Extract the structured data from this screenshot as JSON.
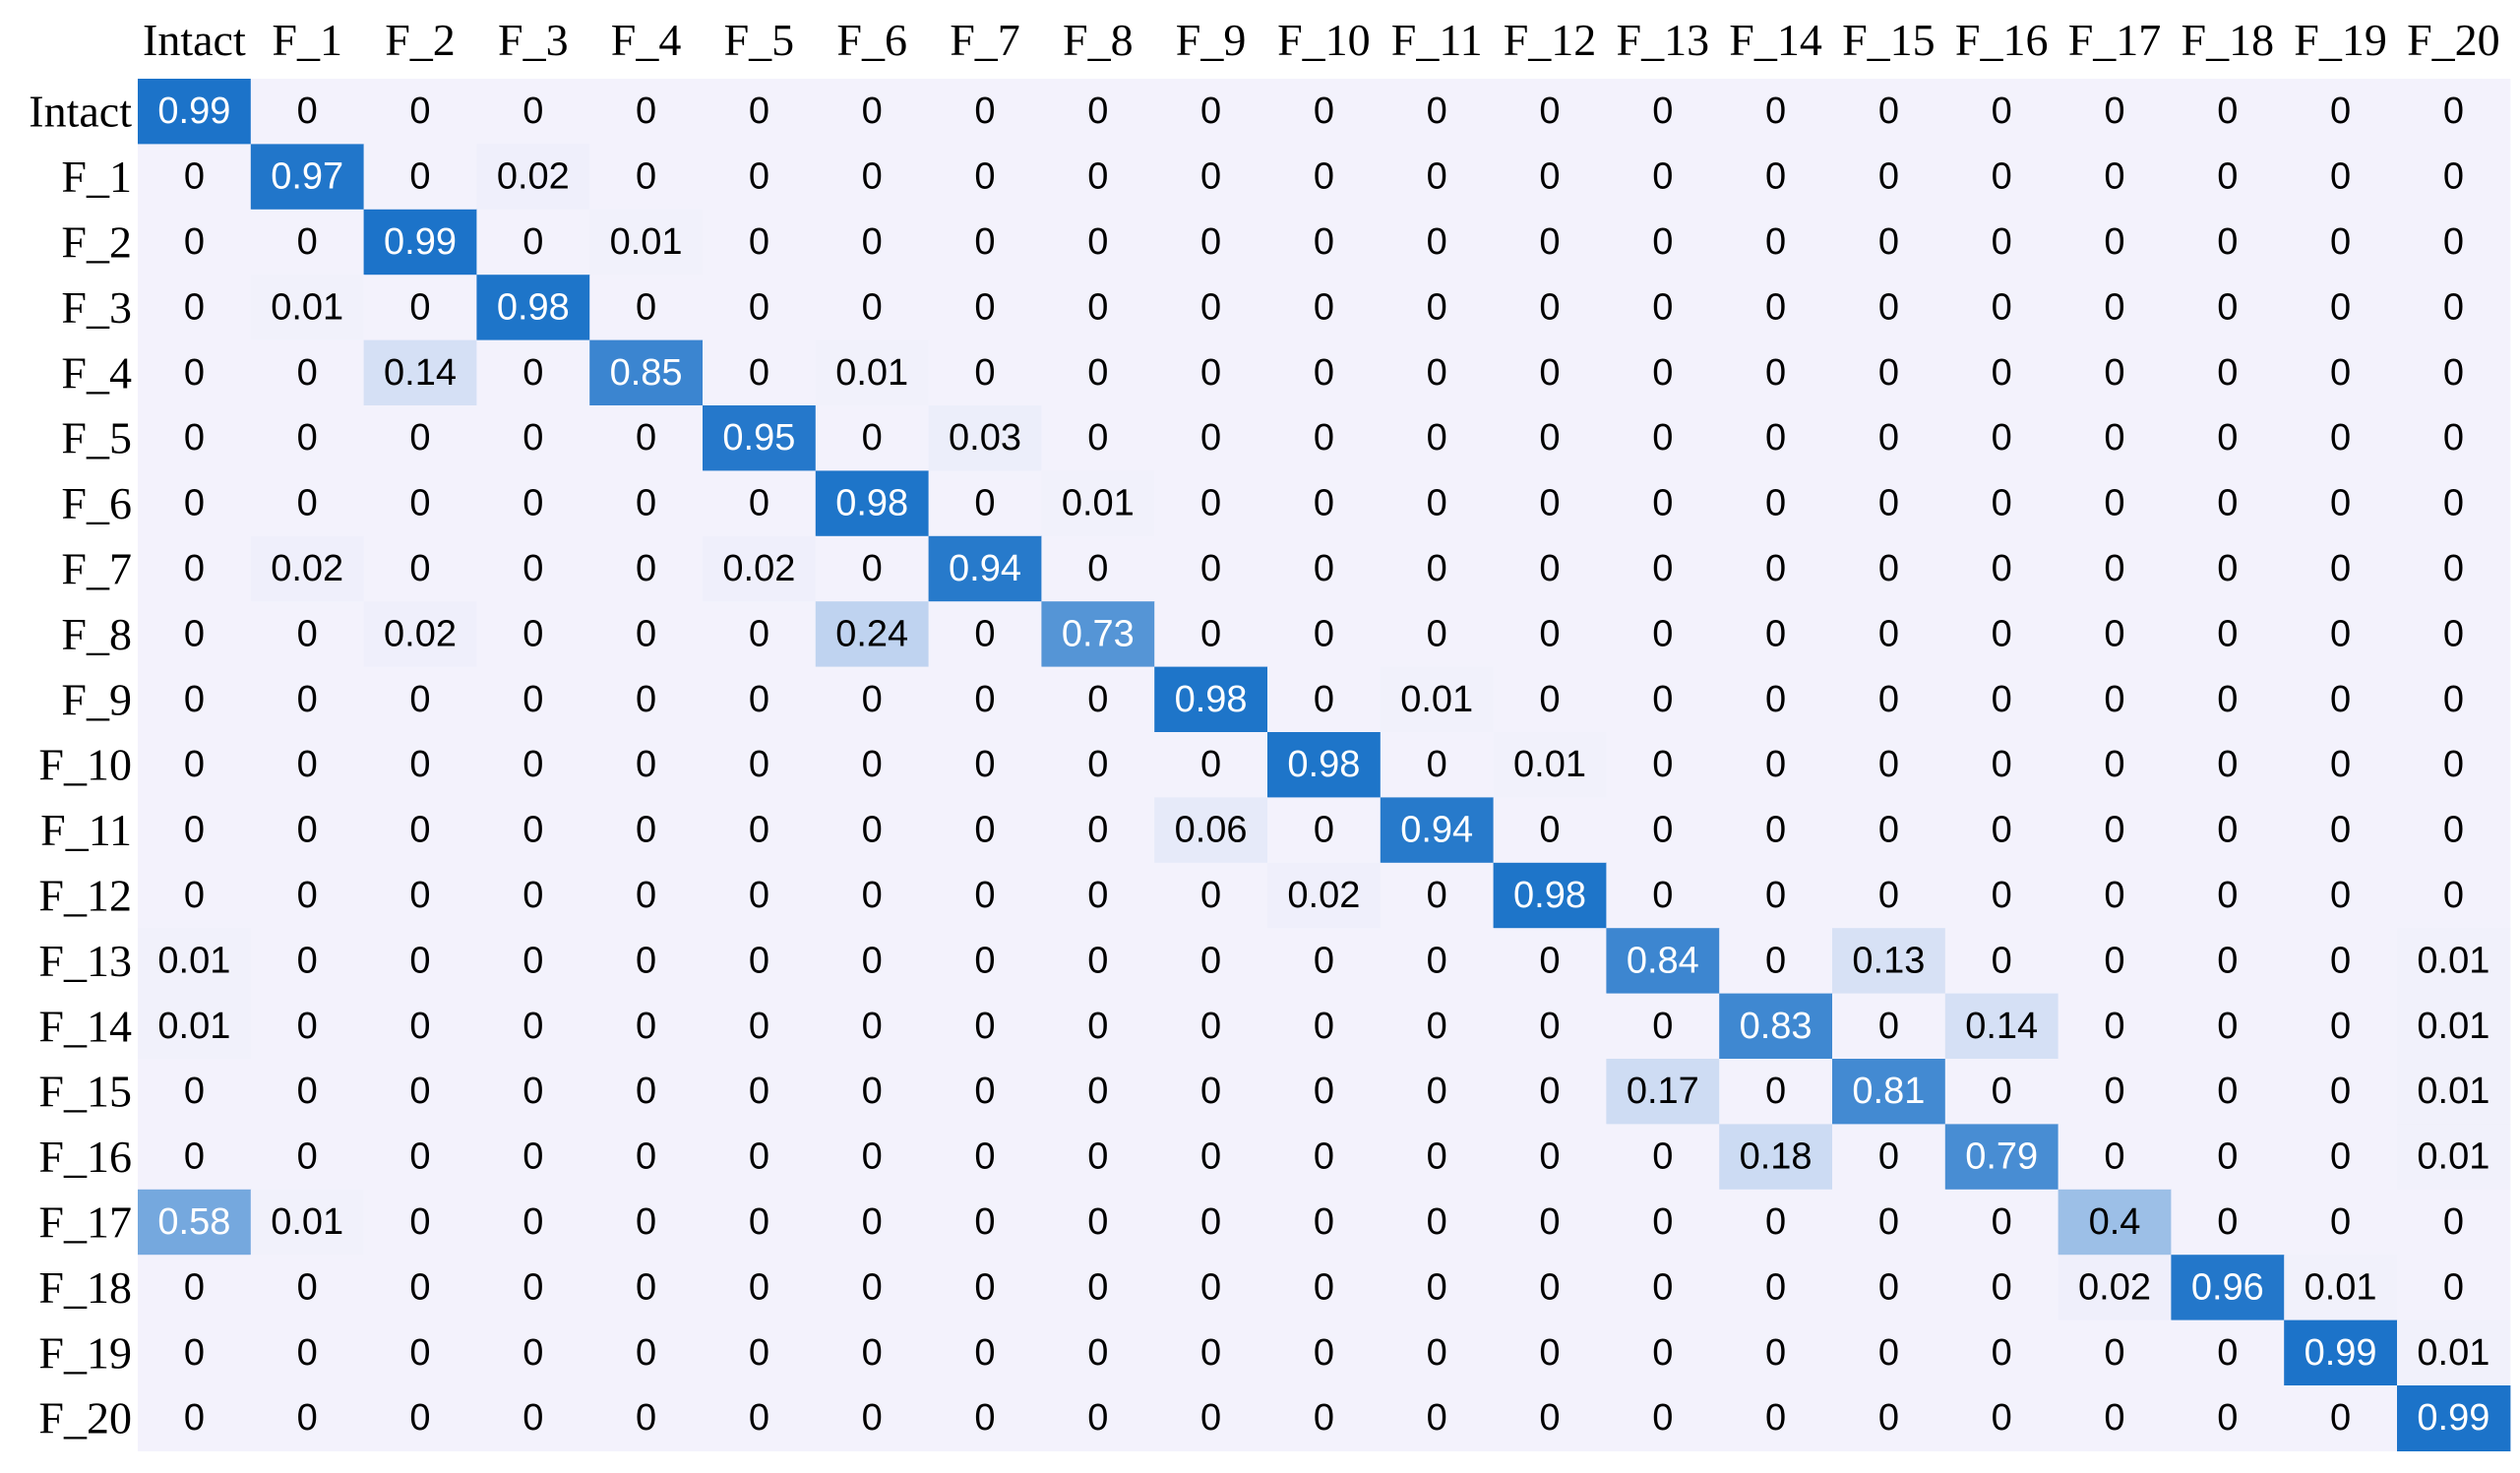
{
  "chart_data": {
    "type": "heatmap",
    "title": "",
    "xlabel": "",
    "ylabel": "",
    "categories": [
      "Intact",
      "F_1",
      "F_2",
      "F_3",
      "F_4",
      "F_5",
      "F_6",
      "F_7",
      "F_8",
      "F_9",
      "F_10",
      "F_11",
      "F_12",
      "F_13",
      "F_14",
      "F_15",
      "F_16",
      "F_17",
      "F_18",
      "F_19",
      "F_20"
    ],
    "row_labels": [
      "Intact",
      "F_1",
      "F_2",
      "F_3",
      "F_4",
      "F_5",
      "F_6",
      "F_7",
      "F_8",
      "F_9",
      "F_10",
      "F_11",
      "F_12",
      "F_13",
      "F_14",
      "F_15",
      "F_16",
      "F_17",
      "F_18",
      "F_19",
      "F_20"
    ],
    "values": [
      [
        0.99,
        0,
        0,
        0,
        0,
        0,
        0,
        0,
        0,
        0,
        0,
        0,
        0,
        0,
        0,
        0,
        0,
        0,
        0,
        0,
        0
      ],
      [
        0,
        0.97,
        0,
        0.02,
        0,
        0,
        0,
        0,
        0,
        0,
        0,
        0,
        0,
        0,
        0,
        0,
        0,
        0,
        0,
        0,
        0
      ],
      [
        0,
        0,
        0.99,
        0,
        0.01,
        0,
        0,
        0,
        0,
        0,
        0,
        0,
        0,
        0,
        0,
        0,
        0,
        0,
        0,
        0,
        0
      ],
      [
        0,
        0.01,
        0,
        0.98,
        0,
        0,
        0,
        0,
        0,
        0,
        0,
        0,
        0,
        0,
        0,
        0,
        0,
        0,
        0,
        0,
        0
      ],
      [
        0,
        0,
        0.14,
        0,
        0.85,
        0,
        0.01,
        0,
        0,
        0,
        0,
        0,
        0,
        0,
        0,
        0,
        0,
        0,
        0,
        0,
        0
      ],
      [
        0,
        0,
        0,
        0,
        0,
        0.95,
        0,
        0.03,
        0,
        0,
        0,
        0,
        0,
        0,
        0,
        0,
        0,
        0,
        0,
        0,
        0
      ],
      [
        0,
        0,
        0,
        0,
        0,
        0,
        0.98,
        0,
        0.01,
        0,
        0,
        0,
        0,
        0,
        0,
        0,
        0,
        0,
        0,
        0,
        0
      ],
      [
        0,
        0.02,
        0,
        0,
        0,
        0.02,
        0,
        0.94,
        0,
        0,
        0,
        0,
        0,
        0,
        0,
        0,
        0,
        0,
        0,
        0,
        0
      ],
      [
        0,
        0,
        0.02,
        0,
        0,
        0,
        0.24,
        0,
        0.73,
        0,
        0,
        0,
        0,
        0,
        0,
        0,
        0,
        0,
        0,
        0,
        0
      ],
      [
        0,
        0,
        0,
        0,
        0,
        0,
        0,
        0,
        0,
        0.98,
        0,
        0.01,
        0,
        0,
        0,
        0,
        0,
        0,
        0,
        0,
        0
      ],
      [
        0,
        0,
        0,
        0,
        0,
        0,
        0,
        0,
        0,
        0,
        0.98,
        0,
        0.01,
        0,
        0,
        0,
        0,
        0,
        0,
        0,
        0
      ],
      [
        0,
        0,
        0,
        0,
        0,
        0,
        0,
        0,
        0,
        0.06,
        0,
        0.94,
        0,
        0,
        0,
        0,
        0,
        0,
        0,
        0,
        0
      ],
      [
        0,
        0,
        0,
        0,
        0,
        0,
        0,
        0,
        0,
        0,
        0.02,
        0,
        0.98,
        0,
        0,
        0,
        0,
        0,
        0,
        0,
        0
      ],
      [
        0.01,
        0,
        0,
        0,
        0,
        0,
        0,
        0,
        0,
        0,
        0,
        0,
        0,
        0.84,
        0,
        0.13,
        0,
        0,
        0,
        0,
        0.01
      ],
      [
        0.01,
        0,
        0,
        0,
        0,
        0,
        0,
        0,
        0,
        0,
        0,
        0,
        0,
        0,
        0.83,
        0,
        0.14,
        0,
        0,
        0,
        0.01
      ],
      [
        0,
        0,
        0,
        0,
        0,
        0,
        0,
        0,
        0,
        0,
        0,
        0,
        0,
        0.17,
        0,
        0.81,
        0,
        0,
        0,
        0,
        0.01
      ],
      [
        0,
        0,
        0,
        0,
        0,
        0,
        0,
        0,
        0,
        0,
        0,
        0,
        0,
        0,
        0.18,
        0,
        0.79,
        0,
        0,
        0,
        0.01
      ],
      [
        0.58,
        0.01,
        0,
        0,
        0,
        0,
        0,
        0,
        0,
        0,
        0,
        0,
        0,
        0,
        0,
        0,
        0,
        0.4,
        0,
        0,
        0
      ],
      [
        0,
        0,
        0,
        0,
        0,
        0,
        0,
        0,
        0,
        0,
        0,
        0,
        0,
        0,
        0,
        0,
        0,
        0.02,
        0.96,
        0.01,
        0
      ],
      [
        0,
        0,
        0,
        0,
        0,
        0,
        0,
        0,
        0,
        0,
        0,
        0,
        0,
        0,
        0,
        0,
        0,
        0,
        0,
        0.99,
        0.01
      ],
      [
        0,
        0,
        0,
        0,
        0,
        0,
        0,
        0,
        0,
        0,
        0,
        0,
        0,
        0,
        0,
        0,
        0,
        0,
        0,
        0,
        0.99
      ]
    ],
    "colormap": {
      "low": "#f3f2fc",
      "high": "#1a72c8"
    },
    "cell_text_dark": "#000000",
    "cell_text_light": "#ffffff"
  }
}
